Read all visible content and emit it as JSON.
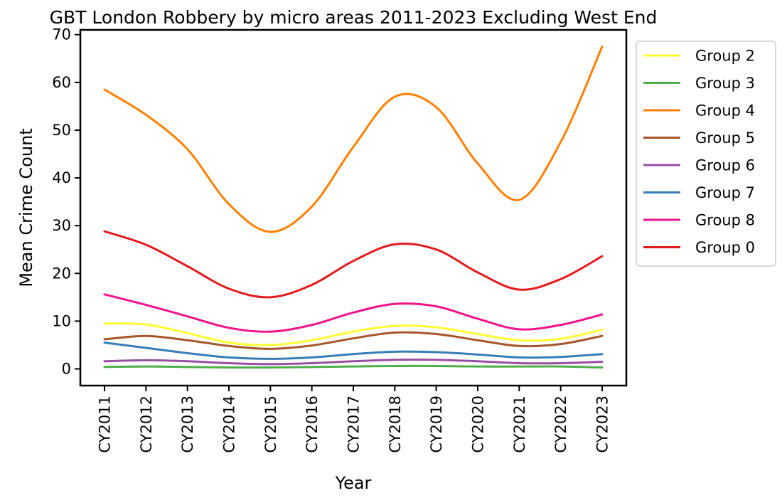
{
  "chart_data": {
    "type": "line",
    "title": "GBT London Robbery by micro areas 2011-2023 Excluding West End",
    "xlabel": "Year",
    "ylabel": "Mean Crime Count",
    "categories": [
      "CY2011",
      "CY2012",
      "CY2013",
      "CY2014",
      "CY2015",
      "CY2016",
      "CY2017",
      "CY2018",
      "CY2019",
      "CY2020",
      "CY2021",
      "CY2022",
      "CY2023"
    ],
    "ylim": [
      -3.5,
      71
    ],
    "yticks": [
      0,
      10,
      20,
      30,
      40,
      50,
      60,
      70
    ],
    "grid": false,
    "legend_position": "outside-right-top",
    "series": [
      {
        "name": "Group 2",
        "color": "#ffff33",
        "values": [
          9.5,
          9.3,
          7.5,
          5.5,
          5.0,
          6.0,
          7.8,
          9.0,
          8.7,
          7.3,
          6.0,
          6.3,
          8.2
        ]
      },
      {
        "name": "Group 3",
        "color": "#4daf4a",
        "values": [
          0.4,
          0.5,
          0.4,
          0.3,
          0.3,
          0.4,
          0.5,
          0.6,
          0.6,
          0.5,
          0.5,
          0.5,
          0.3
        ]
      },
      {
        "name": "Group 4",
        "color": "#ff7f00",
        "values": [
          58.5,
          53.2,
          46.0,
          34.5,
          28.7,
          34.0,
          46.5,
          57.0,
          54.8,
          43.0,
          35.4,
          47.5,
          67.5
        ]
      },
      {
        "name": "Group 5",
        "color": "#a65628",
        "values": [
          6.2,
          6.9,
          6.0,
          4.8,
          4.2,
          4.9,
          6.4,
          7.6,
          7.3,
          6.0,
          4.8,
          5.2,
          6.9
        ]
      },
      {
        "name": "Group 6",
        "color": "#984ea3",
        "values": [
          1.6,
          1.8,
          1.6,
          1.2,
          1.0,
          1.2,
          1.6,
          1.9,
          1.9,
          1.6,
          1.2,
          1.2,
          1.5
        ]
      },
      {
        "name": "Group 7",
        "color": "#377eb8",
        "values": [
          5.5,
          4.4,
          3.3,
          2.4,
          2.1,
          2.4,
          3.1,
          3.6,
          3.5,
          3.0,
          2.4,
          2.5,
          3.1
        ]
      },
      {
        "name": "Group 8",
        "color": "#f0138a",
        "values": [
          15.6,
          13.4,
          11.0,
          8.6,
          7.8,
          9.2,
          11.8,
          13.6,
          13.1,
          10.5,
          8.3,
          9.2,
          11.4
        ]
      },
      {
        "name": "Group 0",
        "color": "#e41a1c",
        "values": [
          28.8,
          26.0,
          21.5,
          16.8,
          15.0,
          17.6,
          22.6,
          26.1,
          25.0,
          20.2,
          16.6,
          18.8,
          23.6
        ]
      }
    ]
  }
}
